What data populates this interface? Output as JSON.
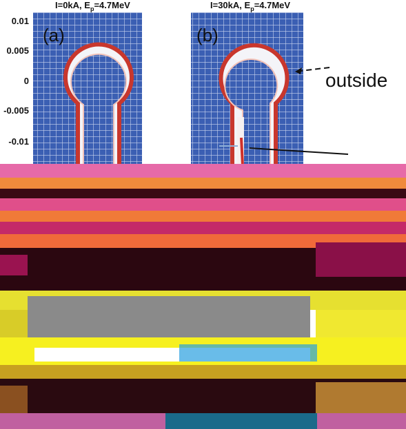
{
  "panels": [
    {
      "title": {
        "prefix": "I=0kA, E",
        "sub": "p",
        "suffix": "=4.7MeV"
      },
      "label": "(a)"
    },
    {
      "title": {
        "prefix": "I=30kA, E",
        "sub": "p",
        "suffix": "=4.7MeV"
      },
      "label": "(b)"
    }
  ],
  "y_axis_labels": [
    "0.01",
    "0.005",
    "0",
    "-0.005",
    "-0.01"
  ],
  "annotation": "outside"
}
